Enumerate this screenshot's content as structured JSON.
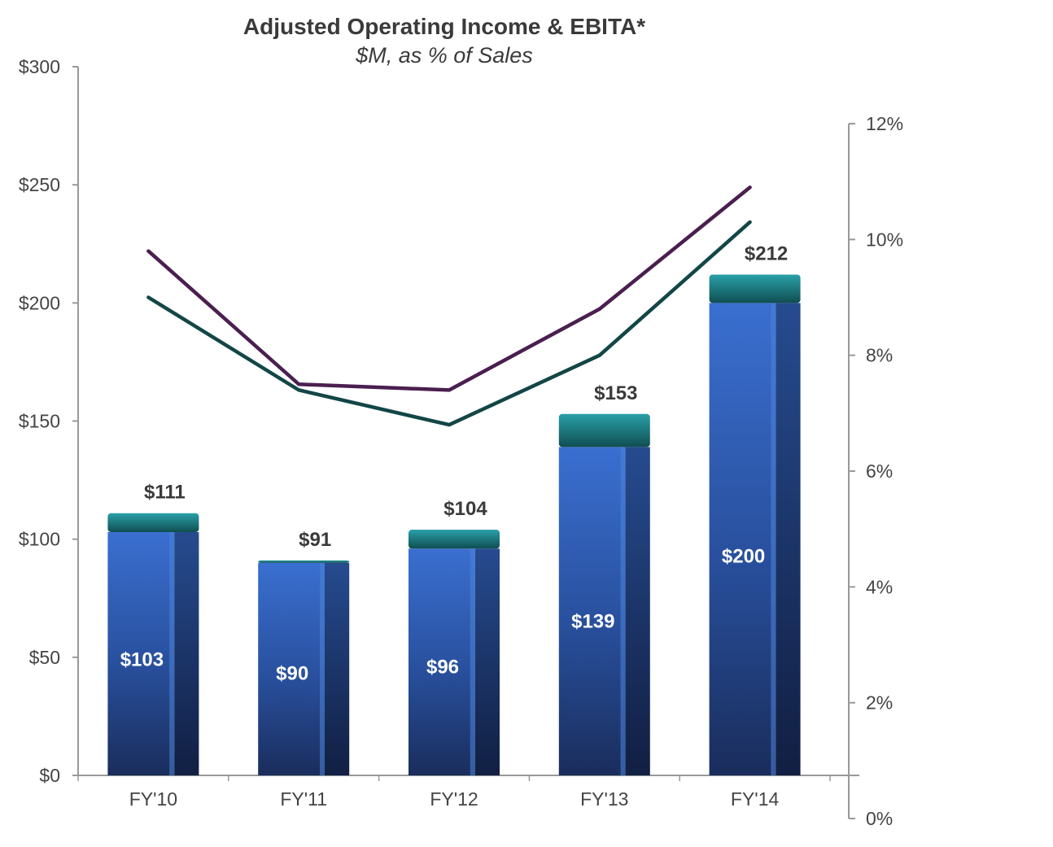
{
  "chart_data": {
    "type": "bar",
    "title": "Adjusted Operating Income & EBITA*",
    "subtitle": "$M, as % of Sales",
    "categories": [
      "FY'10",
      "FY'11",
      "FY'12",
      "FY'13",
      "FY'14"
    ],
    "series": [
      {
        "name": "",
        "kind": "bar-base",
        "values": [
          103,
          90,
          96,
          139,
          200
        ],
        "color": "#2e5aa8"
      },
      {
        "name": "",
        "kind": "bar-top",
        "values": [
          8,
          1,
          8,
          14,
          12
        ],
        "color": "#1f8a92"
      },
      {
        "name": "",
        "kind": "line-pct",
        "axis": "right",
        "values": [
          9.8,
          7.5,
          7.4,
          8.8,
          10.9
        ],
        "color": "#4a1f4f"
      },
      {
        "name": "",
        "kind": "line-pct",
        "axis": "right",
        "values": [
          9.0,
          7.4,
          6.8,
          8.0,
          10.3
        ],
        "color": "#134646"
      }
    ],
    "inner_labels": [
      "$103",
      "$90",
      "$96",
      "$139",
      "$200"
    ],
    "total_labels": [
      "$111",
      "$91",
      "$104",
      "$153",
      "$212"
    ],
    "y_left": {
      "ticks": [
        "$0",
        "$50",
        "$100",
        "$150",
        "$200",
        "$250",
        "$300"
      ],
      "range": [
        0,
        300
      ]
    },
    "y_right": {
      "ticks": [
        "0%",
        "2%",
        "4%",
        "6%",
        "8%",
        "10%",
        "12%"
      ],
      "range": [
        0,
        12
      ]
    },
    "grid": false,
    "legend": "none"
  }
}
